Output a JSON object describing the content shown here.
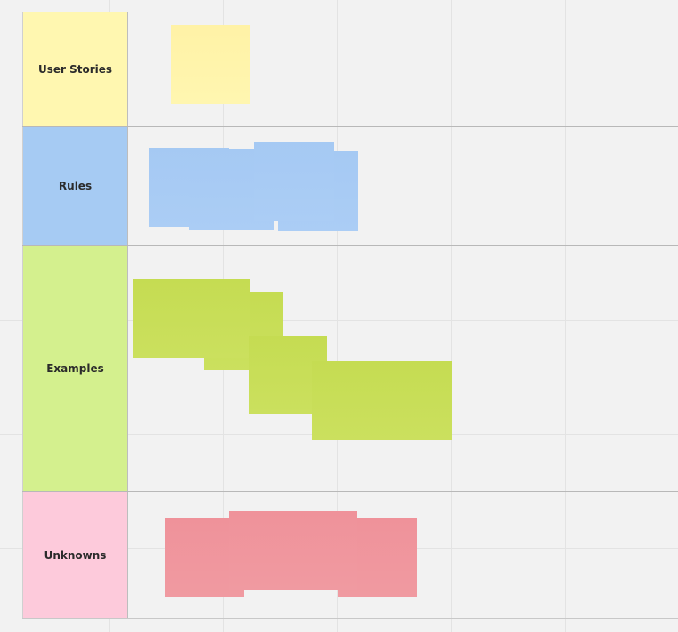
{
  "board": {
    "rows": [
      {
        "label": "User Stories",
        "color": "#fff7b0"
      },
      {
        "label": "Rules",
        "color": "#a6cbf3"
      },
      {
        "label": "Examples",
        "color": "#d4f08e"
      },
      {
        "label": "Unknowns",
        "color": "#fdcadb"
      }
    ]
  },
  "colors": {
    "canvas": "#f2f2f2",
    "sticky_yellow": "#fff4aa",
    "sticky_blue": "#a8cbf4",
    "sticky_green": "#c8de58",
    "sticky_red": "#ef959c"
  }
}
